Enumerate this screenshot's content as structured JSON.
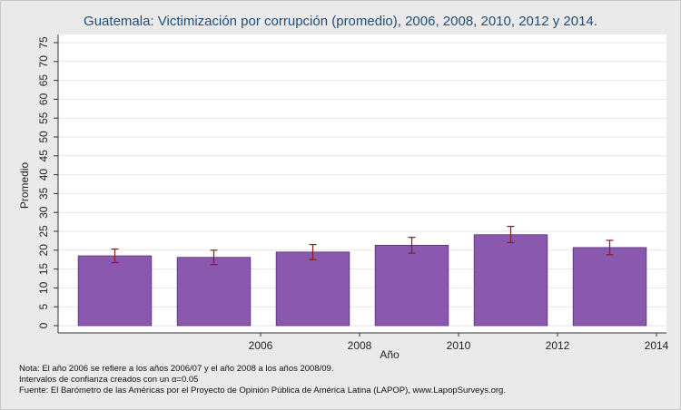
{
  "chart_data": {
    "type": "bar",
    "title": "Guatemala: Victimización por corrupción (promedio), 2006, 2008, 2010, 2012 y 2014.",
    "xlabel": "Año",
    "ylabel": "Promedio",
    "categories": [
      "",
      "2006",
      "2008",
      "2010",
      "2012",
      "2014"
    ],
    "values": [
      18.5,
      18.1,
      19.5,
      21.3,
      24.1,
      20.7
    ],
    "ci_low": [
      16.7,
      16.2,
      17.5,
      19.2,
      22.0,
      18.8
    ],
    "ci_high": [
      20.3,
      20.0,
      21.5,
      23.4,
      26.3,
      22.6
    ],
    "ylim": [
      0,
      75
    ],
    "yticks": [
      "0",
      "5",
      "10",
      "15",
      "20",
      "25",
      "30",
      "35",
      "40",
      "45",
      "50",
      "55",
      "60",
      "65",
      "70",
      "75"
    ],
    "grid": true,
    "legend": "none",
    "colors": {
      "bar": "#8b58b0",
      "bar_edge": "#5a2f7a",
      "error": "#8b1a1a",
      "grid": "#e6e6e6",
      "plot_bg": "#ffffff"
    }
  },
  "notes": {
    "line1": "Nota: El año 2006 se refiere a los años 2006/07 y el año 2008 a los años 2008/09.",
    "line2": "Intervalos de confianza creados con un α=0.05",
    "line3": "Fuente: El Barómetro de las Américas por el Proyecto de Opinión Pública de América Latina (LAPOP), www.LapopSurveys.org."
  }
}
